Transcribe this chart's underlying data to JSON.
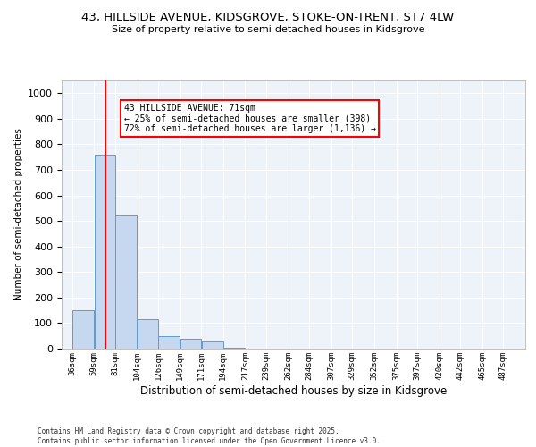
{
  "title_line1": "43, HILLSIDE AVENUE, KIDSGROVE, STOKE-ON-TRENT, ST7 4LW",
  "title_line2": "Size of property relative to semi-detached houses in Kidsgrove",
  "xlabel": "Distribution of semi-detached houses by size in Kidsgrove",
  "ylabel": "Number of semi-detached properties",
  "bar_color": "#c5d8f0",
  "bar_edge_color": "#5b9bd5",
  "bar_left_edges": [
    36,
    59,
    81,
    104,
    126,
    149,
    171,
    194,
    217,
    239,
    262,
    284,
    307,
    329,
    352,
    375,
    397,
    420,
    442,
    465
  ],
  "bar_widths": [
    23,
    22,
    23,
    22,
    23,
    22,
    23,
    23,
    22,
    23,
    22,
    23,
    22,
    23,
    23,
    22,
    23,
    22,
    23,
    22
  ],
  "bar_heights": [
    150,
    760,
    520,
    115,
    50,
    40,
    30,
    5,
    0,
    0,
    0,
    0,
    0,
    0,
    0,
    0,
    0,
    0,
    0,
    0
  ],
  "tick_labels": [
    "36sqm",
    "59sqm",
    "81sqm",
    "104sqm",
    "126sqm",
    "149sqm",
    "171sqm",
    "194sqm",
    "217sqm",
    "239sqm",
    "262sqm",
    "284sqm",
    "307sqm",
    "329sqm",
    "352sqm",
    "375sqm",
    "397sqm",
    "420sqm",
    "442sqm",
    "465sqm",
    "487sqm"
  ],
  "tick_positions": [
    36,
    59,
    81,
    104,
    126,
    149,
    171,
    194,
    217,
    239,
    262,
    284,
    307,
    329,
    352,
    375,
    397,
    420,
    442,
    465,
    487
  ],
  "ylim": [
    0,
    1050
  ],
  "xlim": [
    25,
    510
  ],
  "yticks": [
    0,
    100,
    200,
    300,
    400,
    500,
    600,
    700,
    800,
    900,
    1000
  ],
  "red_line_x": 71,
  "annotation_title": "43 HILLSIDE AVENUE: 71sqm",
  "annotation_line2": "← 25% of semi-detached houses are smaller (398)",
  "annotation_line3": "72% of semi-detached houses are larger (1,136) →",
  "bg_color": "#eef3fa",
  "grid_color": "#ffffff",
  "footer_line1": "Contains HM Land Registry data © Crown copyright and database right 2025.",
  "footer_line2": "Contains public sector information licensed under the Open Government Licence v3.0."
}
